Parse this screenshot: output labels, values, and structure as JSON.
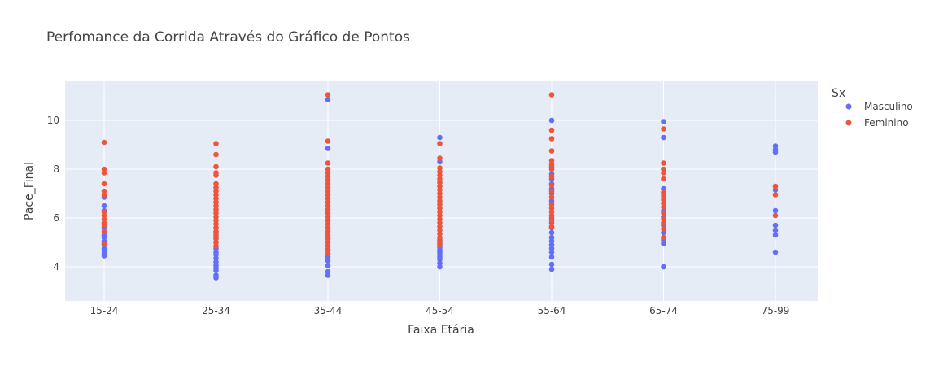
{
  "chart_data": {
    "type": "scatter",
    "title": "Perfomance da Corrida Através do Gráfico de Pontos",
    "xlabel": "Faixa Etária",
    "ylabel": "Pace_Final",
    "categories": [
      "15-24",
      "25-34",
      "35-44",
      "45-54",
      "55-64",
      "65-74",
      "75-99"
    ],
    "ylim": [
      2.6,
      11.6
    ],
    "yticks": [
      4,
      6,
      8,
      10
    ],
    "grid": true,
    "plot_background": "#e5ecf6",
    "legend": {
      "title": "Sx",
      "position": "top-right"
    },
    "series": [
      {
        "name": "Masculino",
        "color": "#636efa",
        "points": [
          {
            "x": "15-24",
            "y": 4.45
          },
          {
            "x": "15-24",
            "y": 4.55
          },
          {
            "x": "15-24",
            "y": 4.65
          },
          {
            "x": "15-24",
            "y": 4.75
          },
          {
            "x": "15-24",
            "y": 4.9
          },
          {
            "x": "15-24",
            "y": 5.05
          },
          {
            "x": "15-24",
            "y": 5.2
          },
          {
            "x": "15-24",
            "y": 5.3
          },
          {
            "x": "15-24",
            "y": 5.6
          },
          {
            "x": "15-24",
            "y": 6.3
          },
          {
            "x": "15-24",
            "y": 6.5
          },
          {
            "x": "15-24",
            "y": 6.85
          },
          {
            "x": "25-34",
            "y": 3.55
          },
          {
            "x": "25-34",
            "y": 3.65
          },
          {
            "x": "25-34",
            "y": 3.85
          },
          {
            "x": "25-34",
            "y": 3.95
          },
          {
            "x": "25-34",
            "y": 4.05
          },
          {
            "x": "25-34",
            "y": 4.2
          },
          {
            "x": "25-34",
            "y": 4.35
          },
          {
            "x": "25-34",
            "y": 4.5
          },
          {
            "x": "25-34",
            "y": 4.6
          },
          {
            "x": "25-34",
            "y": 4.75
          },
          {
            "x": "25-34",
            "y": 4.85
          },
          {
            "x": "25-34",
            "y": 5.0
          },
          {
            "x": "25-34",
            "y": 5.2
          },
          {
            "x": "25-34",
            "y": 5.4
          },
          {
            "x": "35-44",
            "y": 3.65
          },
          {
            "x": "35-44",
            "y": 3.8
          },
          {
            "x": "35-44",
            "y": 4.05
          },
          {
            "x": "35-44",
            "y": 4.25
          },
          {
            "x": "35-44",
            "y": 4.4
          },
          {
            "x": "35-44",
            "y": 4.55
          },
          {
            "x": "35-44",
            "y": 4.7
          },
          {
            "x": "35-44",
            "y": 4.85
          },
          {
            "x": "35-44",
            "y": 5.0
          },
          {
            "x": "35-44",
            "y": 5.15
          },
          {
            "x": "35-44",
            "y": 8.85
          },
          {
            "x": "35-44",
            "y": 10.85
          },
          {
            "x": "45-54",
            "y": 4.0
          },
          {
            "x": "45-54",
            "y": 4.15
          },
          {
            "x": "45-54",
            "y": 4.3
          },
          {
            "x": "45-54",
            "y": 4.4
          },
          {
            "x": "45-54",
            "y": 4.5
          },
          {
            "x": "45-54",
            "y": 4.6
          },
          {
            "x": "45-54",
            "y": 4.7
          },
          {
            "x": "45-54",
            "y": 4.8
          },
          {
            "x": "45-54",
            "y": 4.95
          },
          {
            "x": "45-54",
            "y": 5.1
          },
          {
            "x": "45-54",
            "y": 8.3
          },
          {
            "x": "45-54",
            "y": 9.3
          },
          {
            "x": "55-64",
            "y": 3.9
          },
          {
            "x": "55-64",
            "y": 4.1
          },
          {
            "x": "55-64",
            "y": 4.4
          },
          {
            "x": "55-64",
            "y": 4.6
          },
          {
            "x": "55-64",
            "y": 4.75
          },
          {
            "x": "55-64",
            "y": 4.9
          },
          {
            "x": "55-64",
            "y": 5.05
          },
          {
            "x": "55-64",
            "y": 5.2
          },
          {
            "x": "55-64",
            "y": 5.4
          },
          {
            "x": "55-64",
            "y": 5.6
          },
          {
            "x": "55-64",
            "y": 5.8
          },
          {
            "x": "55-64",
            "y": 6.0
          },
          {
            "x": "55-64",
            "y": 6.7
          },
          {
            "x": "55-64",
            "y": 7.0
          },
          {
            "x": "55-64",
            "y": 7.2
          },
          {
            "x": "55-64",
            "y": 7.4
          },
          {
            "x": "55-64",
            "y": 7.6
          },
          {
            "x": "55-64",
            "y": 7.8
          },
          {
            "x": "55-64",
            "y": 8.1
          },
          {
            "x": "55-64",
            "y": 10.0
          },
          {
            "x": "65-74",
            "y": 4.0
          },
          {
            "x": "65-74",
            "y": 4.95
          },
          {
            "x": "65-74",
            "y": 5.1
          },
          {
            "x": "65-74",
            "y": 5.4
          },
          {
            "x": "65-74",
            "y": 5.7
          },
          {
            "x": "65-74",
            "y": 6.05
          },
          {
            "x": "65-74",
            "y": 6.3
          },
          {
            "x": "65-74",
            "y": 7.0
          },
          {
            "x": "65-74",
            "y": 7.2
          },
          {
            "x": "65-74",
            "y": 9.3
          },
          {
            "x": "65-74",
            "y": 9.95
          },
          {
            "x": "75-99",
            "y": 4.6
          },
          {
            "x": "75-99",
            "y": 5.3
          },
          {
            "x": "75-99",
            "y": 5.5
          },
          {
            "x": "75-99",
            "y": 5.7
          },
          {
            "x": "75-99",
            "y": 6.3
          },
          {
            "x": "75-99",
            "y": 7.15
          },
          {
            "x": "75-99",
            "y": 8.7
          },
          {
            "x": "75-99",
            "y": 8.8
          },
          {
            "x": "75-99",
            "y": 8.95
          }
        ]
      },
      {
        "name": "Feminino",
        "color": "#ef553b",
        "points": [
          {
            "x": "15-24",
            "y": 4.95
          },
          {
            "x": "15-24",
            "y": 5.45
          },
          {
            "x": "15-24",
            "y": 5.7
          },
          {
            "x": "15-24",
            "y": 5.8
          },
          {
            "x": "15-24",
            "y": 5.95
          },
          {
            "x": "15-24",
            "y": 6.1
          },
          {
            "x": "15-24",
            "y": 6.25
          },
          {
            "x": "15-24",
            "y": 6.95
          },
          {
            "x": "15-24",
            "y": 7.1
          },
          {
            "x": "15-24",
            "y": 7.4
          },
          {
            "x": "15-24",
            "y": 7.85
          },
          {
            "x": "15-24",
            "y": 8.0
          },
          {
            "x": "15-24",
            "y": 9.1
          },
          {
            "x": "25-34",
            "y": 4.85
          },
          {
            "x": "25-34",
            "y": 5.0
          },
          {
            "x": "25-34",
            "y": 5.15
          },
          {
            "x": "25-34",
            "y": 5.3
          },
          {
            "x": "25-34",
            "y": 5.45
          },
          {
            "x": "25-34",
            "y": 5.6
          },
          {
            "x": "25-34",
            "y": 5.75
          },
          {
            "x": "25-34",
            "y": 5.9
          },
          {
            "x": "25-34",
            "y": 6.05
          },
          {
            "x": "25-34",
            "y": 6.2
          },
          {
            "x": "25-34",
            "y": 6.35
          },
          {
            "x": "25-34",
            "y": 6.5
          },
          {
            "x": "25-34",
            "y": 6.65
          },
          {
            "x": "25-34",
            "y": 6.8
          },
          {
            "x": "25-34",
            "y": 6.95
          },
          {
            "x": "25-34",
            "y": 7.1
          },
          {
            "x": "25-34",
            "y": 7.25
          },
          {
            "x": "25-34",
            "y": 7.4
          },
          {
            "x": "25-34",
            "y": 7.75
          },
          {
            "x": "25-34",
            "y": 7.85
          },
          {
            "x": "25-34",
            "y": 8.1
          },
          {
            "x": "25-34",
            "y": 8.6
          },
          {
            "x": "25-34",
            "y": 9.05
          },
          {
            "x": "35-44",
            "y": 4.55
          },
          {
            "x": "35-44",
            "y": 4.7
          },
          {
            "x": "35-44",
            "y": 4.85
          },
          {
            "x": "35-44",
            "y": 5.0
          },
          {
            "x": "35-44",
            "y": 5.15
          },
          {
            "x": "35-44",
            "y": 5.3
          },
          {
            "x": "35-44",
            "y": 5.45
          },
          {
            "x": "35-44",
            "y": 5.6
          },
          {
            "x": "35-44",
            "y": 5.75
          },
          {
            "x": "35-44",
            "y": 5.9
          },
          {
            "x": "35-44",
            "y": 6.05
          },
          {
            "x": "35-44",
            "y": 6.2
          },
          {
            "x": "35-44",
            "y": 6.35
          },
          {
            "x": "35-44",
            "y": 6.5
          },
          {
            "x": "35-44",
            "y": 6.65
          },
          {
            "x": "35-44",
            "y": 6.8
          },
          {
            "x": "35-44",
            "y": 6.95
          },
          {
            "x": "35-44",
            "y": 7.1
          },
          {
            "x": "35-44",
            "y": 7.25
          },
          {
            "x": "35-44",
            "y": 7.4
          },
          {
            "x": "35-44",
            "y": 7.55
          },
          {
            "x": "35-44",
            "y": 7.7
          },
          {
            "x": "35-44",
            "y": 7.85
          },
          {
            "x": "35-44",
            "y": 8.0
          },
          {
            "x": "35-44",
            "y": 8.25
          },
          {
            "x": "35-44",
            "y": 9.15
          },
          {
            "x": "35-44",
            "y": 11.05
          },
          {
            "x": "45-54",
            "y": 4.9
          },
          {
            "x": "45-54",
            "y": 5.05
          },
          {
            "x": "45-54",
            "y": 5.2
          },
          {
            "x": "45-54",
            "y": 5.35
          },
          {
            "x": "45-54",
            "y": 5.5
          },
          {
            "x": "45-54",
            "y": 5.65
          },
          {
            "x": "45-54",
            "y": 5.8
          },
          {
            "x": "45-54",
            "y": 5.95
          },
          {
            "x": "45-54",
            "y": 6.1
          },
          {
            "x": "45-54",
            "y": 6.25
          },
          {
            "x": "45-54",
            "y": 6.4
          },
          {
            "x": "45-54",
            "y": 6.55
          },
          {
            "x": "45-54",
            "y": 6.7
          },
          {
            "x": "45-54",
            "y": 6.85
          },
          {
            "x": "45-54",
            "y": 7.0
          },
          {
            "x": "45-54",
            "y": 7.15
          },
          {
            "x": "45-54",
            "y": 7.3
          },
          {
            "x": "45-54",
            "y": 7.45
          },
          {
            "x": "45-54",
            "y": 7.6
          },
          {
            "x": "45-54",
            "y": 7.75
          },
          {
            "x": "45-54",
            "y": 7.9
          },
          {
            "x": "45-54",
            "y": 8.05
          },
          {
            "x": "45-54",
            "y": 8.45
          },
          {
            "x": "45-54",
            "y": 9.05
          },
          {
            "x": "55-64",
            "y": 5.65
          },
          {
            "x": "55-64",
            "y": 5.9
          },
          {
            "x": "55-64",
            "y": 6.1
          },
          {
            "x": "55-64",
            "y": 6.25
          },
          {
            "x": "55-64",
            "y": 6.4
          },
          {
            "x": "55-64",
            "y": 6.55
          },
          {
            "x": "55-64",
            "y": 6.85
          },
          {
            "x": "55-64",
            "y": 7.1
          },
          {
            "x": "55-64",
            "y": 7.35
          },
          {
            "x": "55-64",
            "y": 7.7
          },
          {
            "x": "55-64",
            "y": 8.0
          },
          {
            "x": "55-64",
            "y": 8.2
          },
          {
            "x": "55-64",
            "y": 8.35
          },
          {
            "x": "55-64",
            "y": 8.75
          },
          {
            "x": "55-64",
            "y": 9.25
          },
          {
            "x": "55-64",
            "y": 9.6
          },
          {
            "x": "55-64",
            "y": 11.05
          },
          {
            "x": "65-74",
            "y": 5.2
          },
          {
            "x": "65-74",
            "y": 5.55
          },
          {
            "x": "65-74",
            "y": 5.8
          },
          {
            "x": "65-74",
            "y": 5.95
          },
          {
            "x": "65-74",
            "y": 6.2
          },
          {
            "x": "65-74",
            "y": 6.45
          },
          {
            "x": "65-74",
            "y": 6.6
          },
          {
            "x": "65-74",
            "y": 6.75
          },
          {
            "x": "65-74",
            "y": 6.9
          },
          {
            "x": "65-74",
            "y": 7.05
          },
          {
            "x": "65-74",
            "y": 7.6
          },
          {
            "x": "65-74",
            "y": 7.85
          },
          {
            "x": "65-74",
            "y": 8.0
          },
          {
            "x": "65-74",
            "y": 8.25
          },
          {
            "x": "65-74",
            "y": 9.65
          },
          {
            "x": "75-99",
            "y": 6.1
          },
          {
            "x": "75-99",
            "y": 6.95
          },
          {
            "x": "75-99",
            "y": 7.3
          }
        ]
      }
    ]
  }
}
